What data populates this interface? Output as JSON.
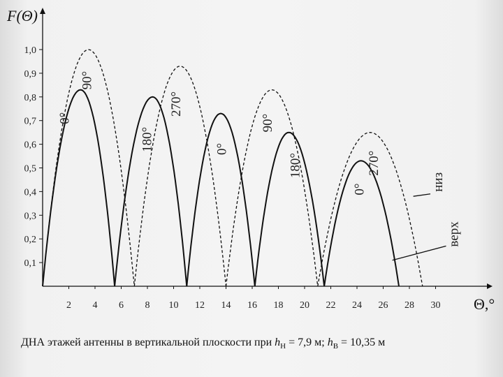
{
  "caption": {
    "text": "ДНА этажей антенны в вертикальной плоскости при ",
    "h1_symbol": "h",
    "h1_sub": "Н",
    "h1_value": " = 7,9 м; ",
    "h2_symbol": "h",
    "h2_sub": "В",
    "h2_value": " = 10,35 м"
  },
  "chart_data": {
    "type": "line",
    "ylabel": "F(Θ)",
    "xlabel": "Θ,°",
    "xlim": [
      0,
      34
    ],
    "ylim": [
      0,
      1.0
    ],
    "x_ticks": [
      2,
      4,
      6,
      8,
      10,
      12,
      14,
      16,
      18,
      20,
      22,
      24,
      26,
      28,
      30
    ],
    "y_ticks": [
      "0,1",
      "0,2",
      "0,3",
      "0,4",
      "0,5",
      "0,6",
      "0,7",
      "0,8",
      "0,9",
      "1,0"
    ],
    "series": [
      {
        "name": "верх",
        "style": "solid",
        "color": "#111111",
        "lobes": [
          {
            "start": 0,
            "peak_x": 2.9,
            "end": 5.5,
            "peak_y": 0.83
          },
          {
            "start": 5.5,
            "peak_x": 8.4,
            "end": 11.0,
            "peak_y": 0.8
          },
          {
            "start": 11.0,
            "peak_x": 13.6,
            "end": 16.2,
            "peak_y": 0.73
          },
          {
            "start": 16.2,
            "peak_x": 18.8,
            "end": 21.5,
            "peak_y": 0.65
          },
          {
            "start": 21.5,
            "peak_x": 24.3,
            "end": 27.2,
            "peak_y": 0.53
          }
        ]
      },
      {
        "name": "низ",
        "style": "dashed",
        "color": "#111111",
        "lobes": [
          {
            "start": 0,
            "peak_x": 3.5,
            "end": 7.0,
            "peak_y": 1.0
          },
          {
            "start": 7.0,
            "peak_x": 10.5,
            "end": 14.0,
            "peak_y": 0.93
          },
          {
            "start": 14.0,
            "peak_x": 17.5,
            "end": 21.0,
            "peak_y": 0.83
          },
          {
            "start": 21.0,
            "peak_x": 25.0,
            "end": 29.0,
            "peak_y": 0.65
          }
        ]
      }
    ],
    "annotations": [
      {
        "text": "90°",
        "x": 3.7,
        "y": 0.87,
        "rot": -90
      },
      {
        "text": "0°",
        "x": 2.0,
        "y": 0.71,
        "rot": -90
      },
      {
        "text": "180°",
        "x": 8.3,
        "y": 0.62,
        "rot": -90
      },
      {
        "text": "270°",
        "x": 10.5,
        "y": 0.77,
        "rot": -90
      },
      {
        "text": "0°",
        "x": 14.0,
        "y": 0.58,
        "rot": -90
      },
      {
        "text": "90°",
        "x": 17.5,
        "y": 0.69,
        "rot": -90
      },
      {
        "text": "180°",
        "x": 19.6,
        "y": 0.51,
        "rot": -90
      },
      {
        "text": "270°",
        "x": 25.6,
        "y": 0.52,
        "rot": -90
      },
      {
        "text": "0°",
        "x": 24.5,
        "y": 0.41,
        "rot": -90
      },
      {
        "text": "низ",
        "x": 30.5,
        "y": 0.44,
        "rot": -90
      },
      {
        "text": "верх",
        "x": 31.7,
        "y": 0.22,
        "rot": -90
      }
    ],
    "legend_pointers": [
      {
        "from": [
          29.6,
          0.39
        ],
        "to": [
          28.3,
          0.38
        ]
      },
      {
        "from": [
          30.8,
          0.17
        ],
        "to": [
          26.7,
          0.11
        ]
      }
    ]
  }
}
